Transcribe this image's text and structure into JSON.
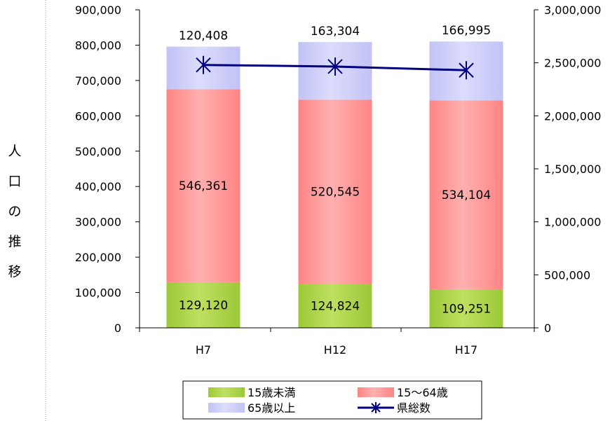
{
  "chart_data": {
    "type": "bar",
    "stacked": true,
    "ylabel": "人口の推移",
    "xlabel": "",
    "categories": [
      "H7",
      "H12",
      "H17"
    ],
    "ylim": [
      0,
      900000
    ],
    "yticks": [
      0,
      100000,
      200000,
      300000,
      400000,
      500000,
      600000,
      700000,
      800000,
      900000
    ],
    "ytick_labels": [
      "0",
      "100,000",
      "200,000",
      "300,000",
      "400,000",
      "500,000",
      "600,000",
      "700,000",
      "800,000",
      "900,000"
    ],
    "y2lim": [
      0,
      3000000
    ],
    "y2ticks": [
      0,
      500000,
      1000000,
      1500000,
      2000000,
      2500000,
      3000000
    ],
    "y2tick_labels": [
      "0",
      "500,000",
      "1,000,000",
      "1,500,000",
      "2,000,000",
      "2,500,000",
      "3,000,000"
    ],
    "series": [
      {
        "name": "15歳未満",
        "kind": "bar",
        "color": "#a8d040",
        "values": [
          129120,
          124824,
          109251
        ],
        "labels": [
          "129,120",
          "124,824",
          "109,251"
        ]
      },
      {
        "name": "15～64歳",
        "kind": "bar",
        "color": "#ff8c8c",
        "values": [
          546361,
          520545,
          534104
        ],
        "labels": [
          "546,361",
          "520,545",
          "534,104"
        ]
      },
      {
        "name": "65歳以上",
        "kind": "bar",
        "color": "#c8c8f8",
        "values": [
          120408,
          163304,
          166995
        ],
        "labels": [
          "120,408",
          "163,304",
          "166,995"
        ]
      },
      {
        "name": "県総数",
        "kind": "line",
        "axis": "right",
        "color": "#000080",
        "values": [
          2480000,
          2465000,
          2430000
        ]
      }
    ],
    "legend": {
      "position": "bottom",
      "columns": 2
    },
    "grid": false
  }
}
